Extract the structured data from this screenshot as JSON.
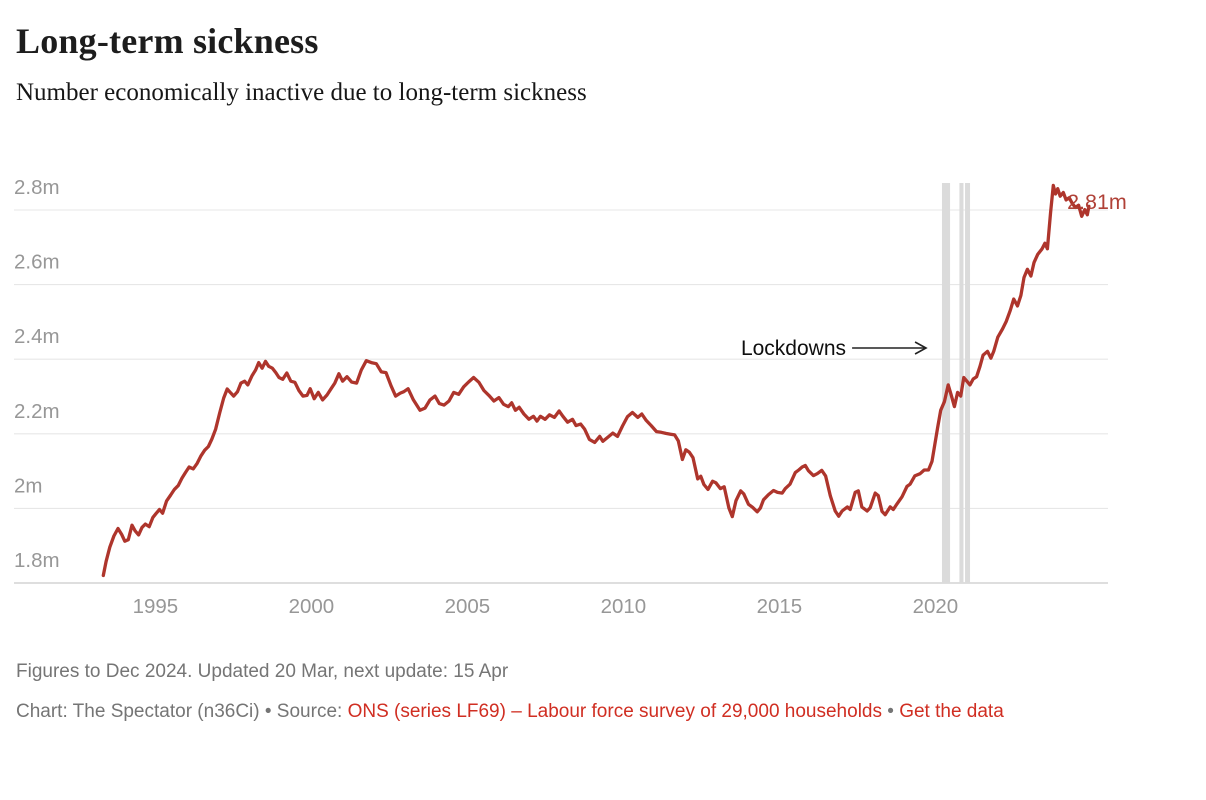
{
  "header": {
    "title": "Long-term sickness",
    "subtitle": "Number economically inactive due to long-term sickness"
  },
  "chart_data": {
    "type": "line",
    "title": "Long-term sickness",
    "xlabel": "",
    "ylabel": "Number economically inactive due to long-term sickness",
    "xlim": [
      1993,
      2025.4
    ],
    "ylim": [
      1.78,
      2.9
    ],
    "grid": "horizontal",
    "legend_position": "none",
    "x_ticks": [
      1995,
      2000,
      2005,
      2010,
      2015,
      2020
    ],
    "y_ticks": [
      {
        "value": 1.8,
        "label": "1.8m"
      },
      {
        "value": 2.0,
        "label": "2m"
      },
      {
        "value": 2.2,
        "label": "2.2m"
      },
      {
        "value": 2.4,
        "label": "2.4m"
      },
      {
        "value": 2.6,
        "label": "2.6m"
      },
      {
        "value": 2.8,
        "label": "2.8m"
      }
    ],
    "lockdown_bands": [
      {
        "start": 2020.21,
        "end": 2020.47
      },
      {
        "start": 2020.77,
        "end": 2020.9
      },
      {
        "start": 2020.95,
        "end": 2021.11
      }
    ],
    "annotation": {
      "text": "Lockdowns",
      "arrow_start_year": 2017.33,
      "arrow_end_year": 2019.7,
      "at_value": 2.43
    },
    "end_label": {
      "text": "2.81m",
      "year": 2025.15,
      "value": 2.81
    },
    "colors": {
      "line": "#ae352c",
      "end_label": "#b04137",
      "grid": "#e7e7e7",
      "axis": "#c9c9c9",
      "tick_label": "#979797",
      "band": "#dbdbdb",
      "annotation_text": "#0f0f0f",
      "arrow": "#222222"
    },
    "series": [
      {
        "name": "Economically inactive due to long-term sickness",
        "points": [
          [
            1993.33,
            1.82
          ],
          [
            1993.42,
            1.858
          ],
          [
            1993.54,
            1.896
          ],
          [
            1993.67,
            1.926
          ],
          [
            1993.8,
            1.946
          ],
          [
            1993.92,
            1.93
          ],
          [
            1994.02,
            1.912
          ],
          [
            1994.13,
            1.916
          ],
          [
            1994.25,
            1.955
          ],
          [
            1994.35,
            1.94
          ],
          [
            1994.46,
            1.929
          ],
          [
            1994.57,
            1.949
          ],
          [
            1994.68,
            1.958
          ],
          [
            1994.8,
            1.951
          ],
          [
            1994.92,
            1.976
          ],
          [
            1995.02,
            1.986
          ],
          [
            1995.13,
            1.997
          ],
          [
            1995.23,
            1.987
          ],
          [
            1995.36,
            2.02
          ],
          [
            1995.49,
            2.036
          ],
          [
            1995.61,
            2.051
          ],
          [
            1995.73,
            2.061
          ],
          [
            1995.85,
            2.081
          ],
          [
            1995.96,
            2.096
          ],
          [
            1996.08,
            2.111
          ],
          [
            1996.21,
            2.106
          ],
          [
            1996.34,
            2.121
          ],
          [
            1996.46,
            2.141
          ],
          [
            1996.58,
            2.156
          ],
          [
            1996.7,
            2.166
          ],
          [
            1996.81,
            2.186
          ],
          [
            1996.93,
            2.212
          ],
          [
            1997.06,
            2.256
          ],
          [
            1997.19,
            2.296
          ],
          [
            1997.3,
            2.32
          ],
          [
            1997.41,
            2.31
          ],
          [
            1997.51,
            2.301
          ],
          [
            1997.63,
            2.313
          ],
          [
            1997.74,
            2.336
          ],
          [
            1997.86,
            2.341
          ],
          [
            1997.96,
            2.331
          ],
          [
            1998.1,
            2.356
          ],
          [
            1998.21,
            2.371
          ],
          [
            1998.31,
            2.391
          ],
          [
            1998.42,
            2.376
          ],
          [
            1998.53,
            2.394
          ],
          [
            1998.63,
            2.381
          ],
          [
            1998.75,
            2.376
          ],
          [
            1998.86,
            2.364
          ],
          [
            1998.96,
            2.351
          ],
          [
            1999.08,
            2.346
          ],
          [
            1999.21,
            2.363
          ],
          [
            1999.34,
            2.341
          ],
          [
            1999.47,
            2.338
          ],
          [
            1999.6,
            2.316
          ],
          [
            1999.73,
            2.301
          ],
          [
            1999.86,
            2.303
          ],
          [
            1999.96,
            2.321
          ],
          [
            2000.09,
            2.294
          ],
          [
            2000.22,
            2.311
          ],
          [
            2000.36,
            2.291
          ],
          [
            2000.5,
            2.304
          ],
          [
            2000.63,
            2.321
          ],
          [
            2000.75,
            2.336
          ],
          [
            2000.88,
            2.361
          ],
          [
            2001.0,
            2.341
          ],
          [
            2001.14,
            2.353
          ],
          [
            2001.29,
            2.339
          ],
          [
            2001.45,
            2.336
          ],
          [
            2001.6,
            2.371
          ],
          [
            2001.76,
            2.396
          ],
          [
            2001.92,
            2.391
          ],
          [
            2002.08,
            2.388
          ],
          [
            2002.24,
            2.366
          ],
          [
            2002.39,
            2.364
          ],
          [
            2002.55,
            2.329
          ],
          [
            2002.7,
            2.301
          ],
          [
            2002.85,
            2.309
          ],
          [
            2002.96,
            2.313
          ],
          [
            2003.1,
            2.321
          ],
          [
            2003.27,
            2.291
          ],
          [
            2003.48,
            2.263
          ],
          [
            2003.64,
            2.269
          ],
          [
            2003.8,
            2.291
          ],
          [
            2003.96,
            2.301
          ],
          [
            2004.1,
            2.281
          ],
          [
            2004.25,
            2.277
          ],
          [
            2004.41,
            2.288
          ],
          [
            2004.56,
            2.311
          ],
          [
            2004.72,
            2.306
          ],
          [
            2004.88,
            2.326
          ],
          [
            2005.04,
            2.339
          ],
          [
            2005.2,
            2.351
          ],
          [
            2005.37,
            2.338
          ],
          [
            2005.53,
            2.316
          ],
          [
            2005.69,
            2.303
          ],
          [
            2005.85,
            2.288
          ],
          [
            2006.01,
            2.297
          ],
          [
            2006.16,
            2.279
          ],
          [
            2006.31,
            2.273
          ],
          [
            2006.42,
            2.283
          ],
          [
            2006.54,
            2.263
          ],
          [
            2006.66,
            2.271
          ],
          [
            2006.81,
            2.253
          ],
          [
            2006.97,
            2.239
          ],
          [
            2007.12,
            2.247
          ],
          [
            2007.23,
            2.234
          ],
          [
            2007.34,
            2.247
          ],
          [
            2007.49,
            2.239
          ],
          [
            2007.63,
            2.251
          ],
          [
            2007.79,
            2.244
          ],
          [
            2007.94,
            2.261
          ],
          [
            2008.06,
            2.247
          ],
          [
            2008.21,
            2.231
          ],
          [
            2008.37,
            2.239
          ],
          [
            2008.48,
            2.222
          ],
          [
            2008.63,
            2.226
          ],
          [
            2008.76,
            2.212
          ],
          [
            2008.91,
            2.185
          ],
          [
            2009.08,
            2.177
          ],
          [
            2009.24,
            2.193
          ],
          [
            2009.34,
            2.18
          ],
          [
            2009.49,
            2.19
          ],
          [
            2009.66,
            2.202
          ],
          [
            2009.81,
            2.193
          ],
          [
            2009.97,
            2.221
          ],
          [
            2010.13,
            2.246
          ],
          [
            2010.29,
            2.257
          ],
          [
            2010.46,
            2.244
          ],
          [
            2010.59,
            2.253
          ],
          [
            2010.73,
            2.236
          ],
          [
            2010.89,
            2.222
          ],
          [
            2011.06,
            2.206
          ],
          [
            2011.21,
            2.204
          ],
          [
            2011.36,
            2.201
          ],
          [
            2011.51,
            2.199
          ],
          [
            2011.64,
            2.197
          ],
          [
            2011.76,
            2.181
          ],
          [
            2011.89,
            2.131
          ],
          [
            2012.0,
            2.157
          ],
          [
            2012.11,
            2.151
          ],
          [
            2012.23,
            2.136
          ],
          [
            2012.38,
            2.079
          ],
          [
            2012.48,
            2.086
          ],
          [
            2012.58,
            2.064
          ],
          [
            2012.71,
            2.051
          ],
          [
            2012.86,
            2.073
          ],
          [
            2012.96,
            2.069
          ],
          [
            2013.11,
            2.053
          ],
          [
            2013.23,
            2.058
          ],
          [
            2013.38,
            2.001
          ],
          [
            2013.49,
            1.978
          ],
          [
            2013.61,
            2.021
          ],
          [
            2013.76,
            2.047
          ],
          [
            2013.86,
            2.039
          ],
          [
            2014.01,
            2.011
          ],
          [
            2014.14,
            2.003
          ],
          [
            2014.29,
            1.991
          ],
          [
            2014.39,
            2.001
          ],
          [
            2014.49,
            2.023
          ],
          [
            2014.65,
            2.037
          ],
          [
            2014.81,
            2.048
          ],
          [
            2014.94,
            2.043
          ],
          [
            2015.09,
            2.041
          ],
          [
            2015.19,
            2.053
          ],
          [
            2015.34,
            2.065
          ],
          [
            2015.51,
            2.096
          ],
          [
            2015.62,
            2.103
          ],
          [
            2015.73,
            2.111
          ],
          [
            2015.83,
            2.115
          ],
          [
            2015.93,
            2.101
          ],
          [
            2016.09,
            2.088
          ],
          [
            2016.21,
            2.093
          ],
          [
            2016.36,
            2.102
          ],
          [
            2016.48,
            2.087
          ],
          [
            2016.63,
            2.034
          ],
          [
            2016.79,
            1.993
          ],
          [
            2016.9,
            1.979
          ],
          [
            2017.01,
            1.993
          ],
          [
            2017.18,
            2.004
          ],
          [
            2017.27,
            1.997
          ],
          [
            2017.43,
            2.043
          ],
          [
            2017.53,
            2.047
          ],
          [
            2017.64,
            2.004
          ],
          [
            2017.81,
            1.993
          ],
          [
            2017.91,
            2.002
          ],
          [
            2018.07,
            2.041
          ],
          [
            2018.17,
            2.034
          ],
          [
            2018.29,
            1.992
          ],
          [
            2018.39,
            1.983
          ],
          [
            2018.55,
            2.004
          ],
          [
            2018.65,
            1.997
          ],
          [
            2018.77,
            2.012
          ],
          [
            2018.93,
            2.031
          ],
          [
            2019.09,
            2.059
          ],
          [
            2019.19,
            2.065
          ],
          [
            2019.34,
            2.087
          ],
          [
            2019.51,
            2.093
          ],
          [
            2019.64,
            2.103
          ],
          [
            2019.78,
            2.103
          ],
          [
            2019.89,
            2.126
          ],
          [
            2019.98,
            2.171
          ],
          [
            2020.07,
            2.216
          ],
          [
            2020.17,
            2.263
          ],
          [
            2020.29,
            2.286
          ],
          [
            2020.41,
            2.331
          ],
          [
            2020.51,
            2.303
          ],
          [
            2020.61,
            2.273
          ],
          [
            2020.71,
            2.311
          ],
          [
            2020.81,
            2.301
          ],
          [
            2020.91,
            2.351
          ],
          [
            2021.01,
            2.341
          ],
          [
            2021.11,
            2.331
          ],
          [
            2021.21,
            2.347
          ],
          [
            2021.32,
            2.353
          ],
          [
            2021.43,
            2.381
          ],
          [
            2021.53,
            2.411
          ],
          [
            2021.67,
            2.421
          ],
          [
            2021.78,
            2.403
          ],
          [
            2021.87,
            2.421
          ],
          [
            2022.0,
            2.459
          ],
          [
            2022.15,
            2.481
          ],
          [
            2022.27,
            2.501
          ],
          [
            2022.4,
            2.531
          ],
          [
            2022.51,
            2.561
          ],
          [
            2022.63,
            2.543
          ],
          [
            2022.74,
            2.571
          ],
          [
            2022.84,
            2.619
          ],
          [
            2022.95,
            2.641
          ],
          [
            2023.06,
            2.623
          ],
          [
            2023.16,
            2.659
          ],
          [
            2023.28,
            2.681
          ],
          [
            2023.42,
            2.696
          ],
          [
            2023.51,
            2.711
          ],
          [
            2023.59,
            2.696
          ],
          [
            2023.69,
            2.791
          ],
          [
            2023.78,
            2.866
          ],
          [
            2023.85,
            2.843
          ],
          [
            2023.92,
            2.857
          ],
          [
            2024.0,
            2.837
          ],
          [
            2024.1,
            2.847
          ],
          [
            2024.19,
            2.827
          ],
          [
            2024.29,
            2.833
          ],
          [
            2024.39,
            2.817
          ],
          [
            2024.49,
            2.807
          ],
          [
            2024.59,
            2.813
          ],
          [
            2024.69,
            2.783
          ],
          [
            2024.79,
            2.801
          ],
          [
            2024.87,
            2.787
          ],
          [
            2024.92,
            2.81
          ]
        ]
      }
    ]
  },
  "footer": {
    "note": "Figures to Dec 2024. Updated 20 Mar, next update: 15 Apr",
    "credit_prefix": "Chart: The Spectator (n36Ci) • Source: ",
    "source_link": "ONS (series LF69) – Labour force survey of 29,000 households",
    "separator": " • ",
    "data_link": "Get the data"
  }
}
